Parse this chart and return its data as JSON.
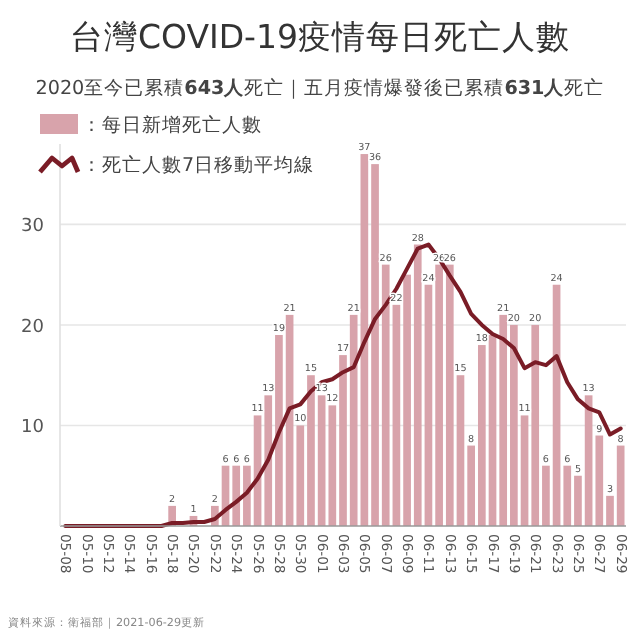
{
  "chart_data": {
    "type": "bar",
    "title": "台灣COVID-19疫情每日死亡人數",
    "subtitle": "2020至今已累積**643人**死亡｜五月疫情爆發後已累積**631人**死亡",
    "categories": [
      "05-08",
      null,
      "05-10",
      null,
      "05-12",
      null,
      "05-14",
      null,
      "05-16",
      null,
      "05-18",
      null,
      "05-20",
      null,
      "05-22",
      null,
      "05-24",
      null,
      "05-26",
      null,
      "05-28",
      null,
      "05-30",
      null,
      "06-01",
      null,
      "06-03",
      null,
      "06-05",
      null,
      "06-07",
      null,
      "06-09",
      null,
      "06-11",
      null,
      "06-13",
      null,
      "06-15",
      null,
      "06-17",
      null,
      "06-19",
      null,
      "06-21",
      null,
      "06-23",
      null,
      "06-25",
      null,
      "06-27",
      null,
      "06-29"
    ],
    "series": [
      {
        "name": "：每日新增死亡人數",
        "color": "#d8a3ab",
        "values": [
          0,
          0,
          0,
          0,
          0,
          0,
          0,
          0,
          0,
          0,
          2,
          0,
          1,
          0,
          2,
          6,
          6,
          6,
          11,
          13,
          19,
          21,
          10,
          15,
          13,
          12,
          17,
          21,
          37,
          36,
          26,
          22,
          25,
          28,
          24,
          26,
          26,
          15,
          8,
          18,
          19,
          21,
          20,
          11,
          20,
          6,
          24,
          6,
          5,
          13,
          9,
          3,
          8
        ],
        "value_labels": [
          null,
          null,
          null,
          null,
          null,
          null,
          null,
          null,
          null,
          null,
          "2",
          null,
          "1",
          null,
          "2",
          "6",
          "6",
          "6",
          "11",
          "13",
          "19",
          "21",
          "10",
          "15",
          "13",
          "12",
          "17",
          "21",
          "37",
          "36",
          "26",
          "22",
          null,
          "28",
          "24",
          "26",
          "26",
          "15",
          "8",
          "18",
          null,
          "21",
          "20",
          "11",
          "20",
          "6",
          "24",
          "6",
          "5",
          "13",
          "9",
          "3",
          "8"
        ]
      },
      {
        "name": "：死亡人數7日移動平均線",
        "type": "line",
        "color": "#7a1c26",
        "values": [
          0,
          0,
          0,
          0,
          0,
          0,
          0,
          0,
          0,
          0,
          0.3,
          0.3,
          0.4,
          0.4,
          0.7,
          1.6,
          2.4,
          3.3,
          4.7,
          6.6,
          9.3,
          11.7,
          12.1,
          13.4,
          14.3,
          14.6,
          15.3,
          15.8,
          18.3,
          20.6,
          22.0,
          23.6,
          25.6,
          27.6,
          28.0,
          26.6,
          24.9,
          23.3,
          21.1,
          20.0,
          19.1,
          18.6,
          17.7,
          15.7,
          16.3,
          16.0,
          16.9,
          14.3,
          12.6,
          11.7,
          11.3,
          9.1,
          9.7
        ]
      }
    ],
    "ylim": [
      0,
      38
    ],
    "yticks": [
      10,
      20,
      30
    ],
    "grid": "y",
    "legend": "top left",
    "annotations": [
      "資料來源：衛福部｜2021-06-29更新"
    ]
  }
}
